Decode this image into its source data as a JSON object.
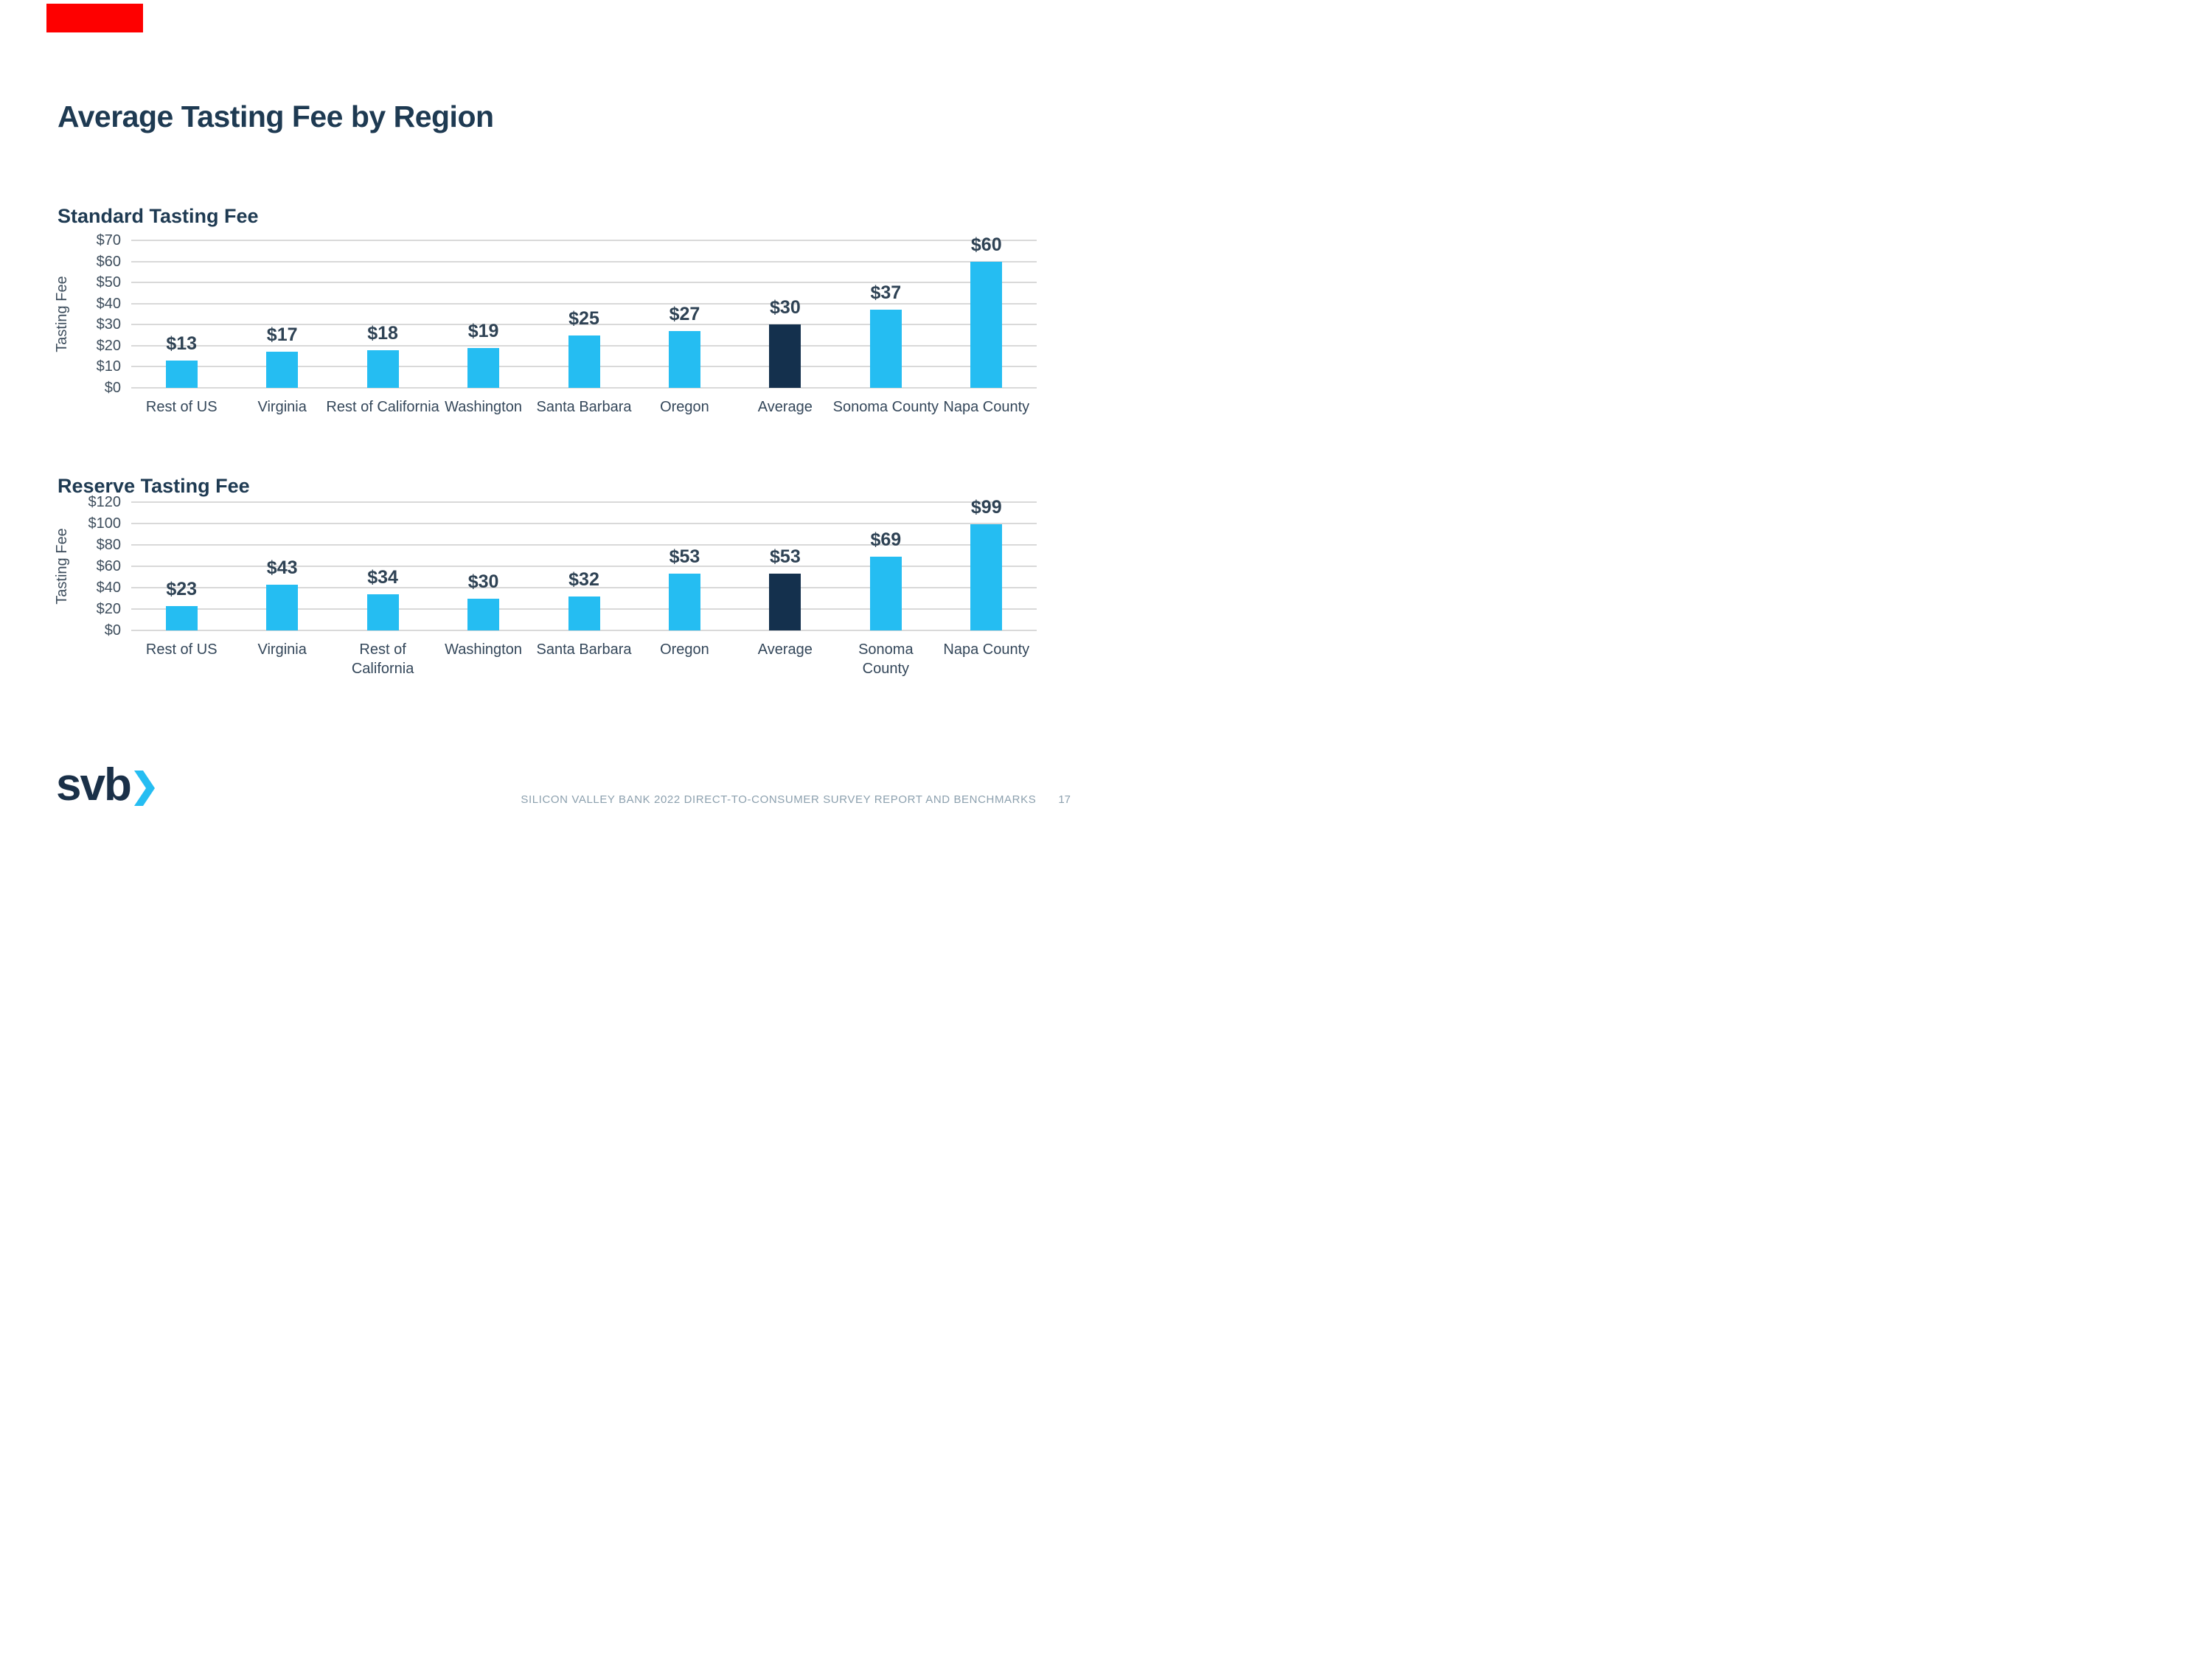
{
  "title": "Average Tasting Fee by Region",
  "logo": {
    "text": "svb",
    "chevron_icon": "chevron-right"
  },
  "footer": {
    "text": "SILICON VALLEY BANK 2022 DIRECT-TO-CONSUMER SURVEY REPORT AND BENCHMARKS",
    "page_number": "17"
  },
  "colors": {
    "accent_red": "#fe0000",
    "bar_cyan": "#25bdf2",
    "bar_navy": "#14304d",
    "title_navy": "#1e3a52",
    "tick_text": "#3d4d5c",
    "value_text": "#2e4254",
    "gridline": "#d9d9d9",
    "footer_gray": "#8ca0ae"
  },
  "chart_data": [
    {
      "type": "bar",
      "title": "Standard Tasting Fee",
      "ylabel": "Tasting Fee",
      "ylim": [
        0,
        70
      ],
      "ytick_step": 10,
      "ytick_prefix": "$",
      "grid": true,
      "legend": "none",
      "categories": [
        "Rest of US",
        "Virginia",
        "Rest of California",
        "Washington",
        "Santa Barbara",
        "Oregon",
        "Average",
        "Sonoma County",
        "Napa County"
      ],
      "values": [
        13,
        17,
        18,
        19,
        25,
        27,
        30,
        37,
        60
      ],
      "value_labels": [
        "$13",
        "$17",
        "$18",
        "$19",
        "$25",
        "$27",
        "$30",
        "$37",
        "$60"
      ],
      "highlight_category": "Average"
    },
    {
      "type": "bar",
      "title": "Reserve Tasting Fee",
      "ylabel": "Tasting Fee",
      "ylim": [
        0,
        120
      ],
      "ytick_step": 20,
      "ytick_prefix": "$",
      "grid": true,
      "legend": "none",
      "categories": [
        "Rest of US",
        "Virginia",
        "Rest of\nCalifornia",
        "Washington",
        "Santa Barbara",
        "Oregon",
        "Average",
        "Sonoma\nCounty",
        "Napa County"
      ],
      "values": [
        23,
        43,
        34,
        30,
        32,
        53,
        53,
        69,
        99
      ],
      "value_labels": [
        "$23",
        "$43",
        "$34",
        "$30",
        "$32",
        "$53",
        "$53",
        "$69",
        "$99"
      ],
      "highlight_category": "Average"
    }
  ]
}
